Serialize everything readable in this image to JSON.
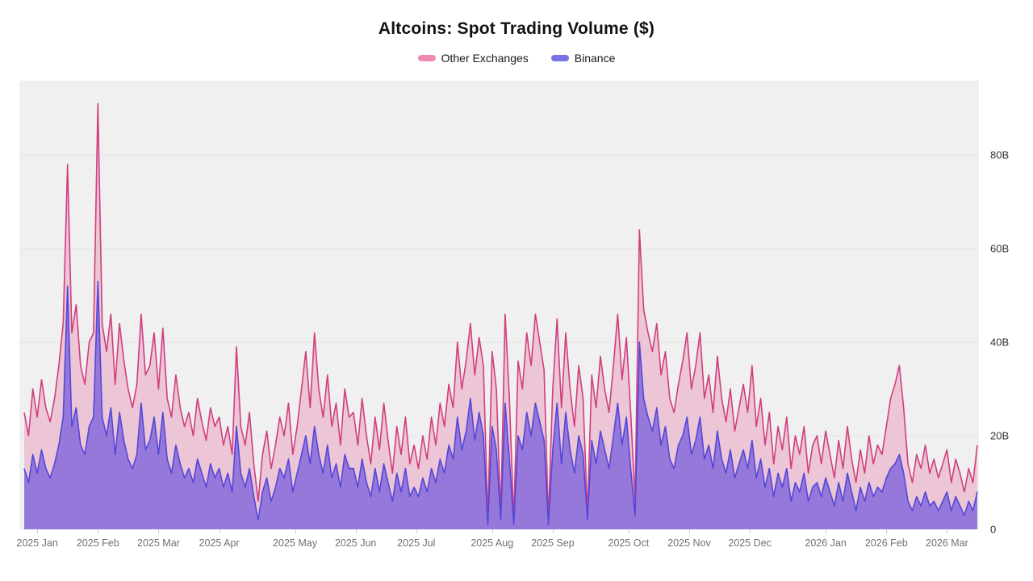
{
  "header": {
    "title": "Altcoins: Spot Trading Volume ($)"
  },
  "legend": [
    {
      "label": "Other Exchanges",
      "color": "#ef8ab3"
    },
    {
      "label": "Binance",
      "color": "#7a72e6"
    }
  ],
  "colors": {
    "plot_background": "#f0f0f0",
    "gridline": "#e4e3e7",
    "other_line": "#d13e7e",
    "other_fill": "#ecc5d6",
    "binance_line": "#5447d8",
    "binance_fill": "#9678da"
  },
  "chart_data": {
    "type": "area",
    "stacked": true,
    "title": "Altcoins: Spot Trading Volume ($)",
    "x_start": "2025-01-01",
    "x_end": "2026-03-17",
    "x_step_days": 2,
    "x_total_days": 440,
    "unit": "billions USD",
    "grid": "horizontal",
    "legend_position": "top",
    "ylabel": "",
    "xlabel": "",
    "ylim": [
      0,
      95.9
    ],
    "y_ticks": [
      {
        "value": 0,
        "label": "0"
      },
      {
        "value": 20,
        "label": "20B"
      },
      {
        "value": 40,
        "label": "40B"
      },
      {
        "value": 60,
        "label": "60B"
      },
      {
        "value": 80,
        "label": "80B"
      }
    ],
    "x_ticks": [
      {
        "day": 6,
        "label": "2025 Jan"
      },
      {
        "day": 34,
        "label": "2025 Feb"
      },
      {
        "day": 62,
        "label": "2025 Mar"
      },
      {
        "day": 90,
        "label": "2025 Apr"
      },
      {
        "day": 125,
        "label": "2025 May"
      },
      {
        "day": 153,
        "label": "2025 Jun"
      },
      {
        "day": 181,
        "label": "2025 Jul"
      },
      {
        "day": 216,
        "label": "2025 Aug"
      },
      {
        "day": 244,
        "label": "2025 Sep"
      },
      {
        "day": 279,
        "label": "2025 Oct"
      },
      {
        "day": 307,
        "label": "2025 Nov"
      },
      {
        "day": 335,
        "label": "2025 Dec"
      },
      {
        "day": 370,
        "label": "2026 Jan"
      },
      {
        "day": 398,
        "label": "2026 Feb"
      },
      {
        "day": 426,
        "label": "2026 Mar"
      }
    ],
    "series": [
      {
        "name": "Binance",
        "line_color": "#5447d8",
        "fill_color": "#9678da",
        "values": [
          13,
          10,
          16,
          12,
          17,
          13,
          11,
          14,
          18,
          24,
          52,
          22,
          26,
          18,
          16,
          22,
          24,
          53,
          24,
          20,
          26,
          16,
          25,
          19,
          15,
          13,
          16,
          27,
          17,
          19,
          24,
          16,
          25,
          15,
          12,
          18,
          14,
          11,
          13,
          10,
          15,
          12,
          9,
          14,
          11,
          13,
          9,
          12,
          8,
          22,
          12,
          9,
          13,
          7,
          2,
          8,
          11,
          6,
          9,
          13,
          11,
          15,
          8,
          12,
          16,
          20,
          14,
          22,
          16,
          12,
          18,
          11,
          14,
          9,
          16,
          13,
          13,
          9,
          15,
          10,
          7,
          13,
          8,
          14,
          10,
          6,
          12,
          8,
          13,
          7,
          9,
          7,
          11,
          8,
          13,
          10,
          15,
          12,
          18,
          15,
          24,
          17,
          21,
          28,
          19,
          25,
          20,
          1,
          22,
          17,
          2,
          27,
          15,
          1,
          20,
          17,
          25,
          20,
          27,
          23,
          19,
          1,
          17,
          27,
          14,
          25,
          17,
          12,
          20,
          16,
          2,
          19,
          14,
          21,
          17,
          13,
          20,
          27,
          18,
          24,
          13,
          3,
          40,
          28,
          24,
          21,
          26,
          18,
          22,
          15,
          13,
          18,
          20,
          24,
          16,
          19,
          24,
          15,
          18,
          13,
          21,
          15,
          12,
          17,
          11,
          14,
          17,
          13,
          19,
          11,
          15,
          9,
          13,
          7,
          12,
          9,
          13,
          6,
          10,
          8,
          12,
          6,
          9,
          10,
          7,
          11,
          8,
          5,
          10,
          6,
          12,
          8,
          4,
          9,
          6,
          10,
          7,
          9,
          8,
          11,
          13,
          14,
          16,
          12,
          6,
          4,
          7,
          5,
          8,
          5,
          6,
          4,
          6,
          8,
          4,
          7,
          5,
          3,
          6,
          4,
          8
        ]
      },
      {
        "name": "Other Exchanges",
        "line_color": "#d13e7e",
        "fill_color": "#ecc5d6",
        "values": [
          12,
          10,
          14,
          12,
          15,
          13,
          12,
          14,
          17,
          20,
          26,
          20,
          22,
          17,
          15,
          18,
          18,
          38,
          20,
          18,
          20,
          15,
          19,
          17,
          15,
          13,
          15,
          19,
          16,
          16,
          18,
          14,
          18,
          13,
          12,
          15,
          12,
          11,
          12,
          10,
          13,
          11,
          10,
          12,
          11,
          11,
          9,
          10,
          8,
          17,
          10,
          9,
          12,
          7,
          4,
          8,
          10,
          7,
          9,
          11,
          9,
          12,
          8,
          10,
          14,
          18,
          12,
          20,
          14,
          12,
          15,
          11,
          13,
          9,
          14,
          11,
          12,
          9,
          13,
          10,
          7,
          11,
          9,
          13,
          9,
          6,
          10,
          8,
          11,
          7,
          9,
          6,
          9,
          7,
          11,
          8,
          12,
          10,
          13,
          11,
          16,
          13,
          15,
          16,
          14,
          16,
          15,
          1,
          16,
          13,
          1,
          19,
          13,
          1,
          16,
          13,
          17,
          15,
          19,
          17,
          15,
          1,
          13,
          18,
          12,
          17,
          13,
          10,
          15,
          12,
          1,
          14,
          12,
          16,
          13,
          12,
          15,
          19,
          14,
          17,
          12,
          3,
          24,
          19,
          18,
          17,
          18,
          15,
          16,
          13,
          12,
          13,
          16,
          18,
          14,
          16,
          18,
          13,
          15,
          12,
          16,
          13,
          11,
          13,
          10,
          12,
          14,
          12,
          16,
          11,
          13,
          9,
          12,
          7,
          10,
          8,
          11,
          7,
          10,
          8,
          10,
          6,
          9,
          10,
          7,
          10,
          8,
          6,
          9,
          7,
          10,
          7,
          6,
          8,
          6,
          10,
          7,
          9,
          8,
          11,
          15,
          17,
          19,
          14,
          8,
          6,
          9,
          8,
          10,
          7,
          9,
          7,
          8,
          9,
          6,
          8,
          7,
          5,
          7,
          6,
          10
        ]
      }
    ]
  }
}
